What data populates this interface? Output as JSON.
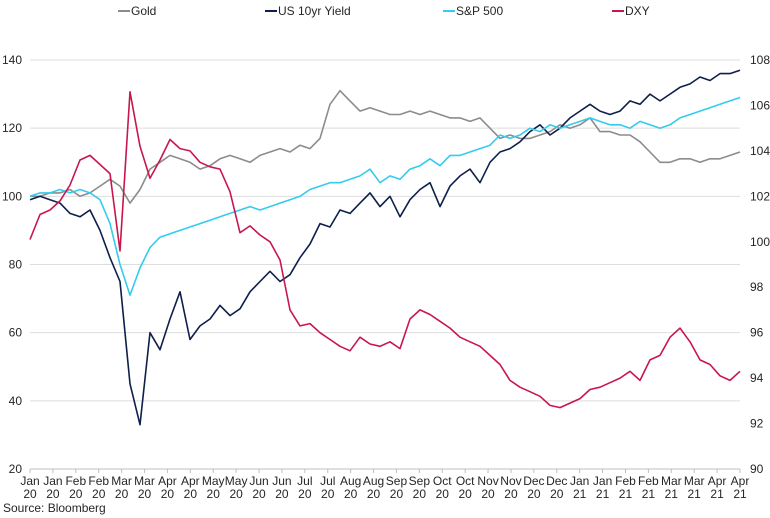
{
  "chart_data": {
    "type": "line",
    "title": "",
    "xlabel": "",
    "ylabel": "",
    "legend_position": "top",
    "grid": "horizontal",
    "y_left": {
      "ylim": [
        20,
        140
      ],
      "ticks": [
        20,
        40,
        60,
        80,
        100,
        120,
        140
      ]
    },
    "y_right": {
      "ylim": [
        90,
        108
      ],
      "ticks": [
        90,
        92,
        94,
        96,
        98,
        100,
        102,
        104,
        106,
        108
      ]
    },
    "x_ticks": [
      [
        "Jan",
        "20"
      ],
      [
        "Jan",
        "20"
      ],
      [
        "Feb",
        "20"
      ],
      [
        "Feb",
        "20"
      ],
      [
        "Mar",
        "20"
      ],
      [
        "Mar",
        "20"
      ],
      [
        "Apr",
        "20"
      ],
      [
        "Apr",
        "20"
      ],
      [
        "May",
        "20"
      ],
      [
        "May",
        "20"
      ],
      [
        "Jun",
        "20"
      ],
      [
        "Jun",
        "20"
      ],
      [
        "Jul",
        "20"
      ],
      [
        "Jul",
        "20"
      ],
      [
        "Aug",
        "20"
      ],
      [
        "Aug",
        "20"
      ],
      [
        "Sep",
        "20"
      ],
      [
        "Sep",
        "20"
      ],
      [
        "Oct",
        "20"
      ],
      [
        "Oct",
        "20"
      ],
      [
        "Nov",
        "20"
      ],
      [
        "Nov",
        "20"
      ],
      [
        "Dec",
        "20"
      ],
      [
        "Dec",
        "20"
      ],
      [
        "Jan",
        "21"
      ],
      [
        "Jan",
        "21"
      ],
      [
        "Feb",
        "21"
      ],
      [
        "Feb",
        "21"
      ],
      [
        "Mar",
        "21"
      ],
      [
        "Mar",
        "21"
      ],
      [
        "Apr",
        "21"
      ],
      [
        "Apr",
        "21"
      ]
    ],
    "series": [
      {
        "name": "Gold",
        "color": "#8c8c8c",
        "axis": "left",
        "values": [
          100,
          100,
          101,
          101,
          102,
          100,
          101,
          103,
          105,
          103,
          98,
          102,
          108,
          110,
          112,
          111,
          110,
          108,
          109,
          111,
          112,
          111,
          110,
          112,
          113,
          114,
          113,
          115,
          114,
          117,
          127,
          131,
          128,
          125,
          126,
          125,
          124,
          124,
          125,
          124,
          125,
          124,
          123,
          123,
          122,
          123,
          120,
          117,
          118,
          117,
          117,
          118,
          119,
          121,
          120,
          121,
          123,
          119,
          119,
          118,
          118,
          116,
          113,
          110,
          110,
          111,
          111,
          110,
          111,
          111,
          112,
          113
        ]
      },
      {
        "name": "US 10yr Yield",
        "color": "#0d1f4a",
        "axis": "left",
        "values": [
          99,
          100,
          99,
          98,
          95,
          94,
          96,
          90,
          82,
          75,
          45,
          33,
          60,
          55,
          64,
          72,
          58,
          62,
          64,
          68,
          65,
          67,
          72,
          75,
          78,
          75,
          77,
          82,
          86,
          92,
          91,
          96,
          95,
          98,
          101,
          97,
          100,
          94,
          99,
          102,
          104,
          97,
          103,
          106,
          108,
          104,
          110,
          113,
          114,
          116,
          119,
          121,
          118,
          120,
          123,
          125,
          127,
          125,
          124,
          125,
          128,
          127,
          130,
          128,
          130,
          132,
          133,
          135,
          134,
          136,
          136,
          137
        ]
      },
      {
        "name": "S&P 500",
        "color": "#33ccee",
        "axis": "left",
        "values": [
          100,
          101,
          101,
          102,
          101,
          102,
          101,
          99,
          92,
          80,
          71,
          79,
          85,
          88,
          89,
          90,
          91,
          92,
          93,
          94,
          95,
          96,
          97,
          96,
          97,
          98,
          99,
          100,
          102,
          103,
          104,
          104,
          105,
          106,
          108,
          104,
          106,
          105,
          108,
          109,
          111,
          109,
          112,
          112,
          113,
          114,
          115,
          118,
          117,
          118,
          120,
          119,
          121,
          120,
          121,
          122,
          123,
          122,
          121,
          121,
          120,
          122,
          121,
          120,
          121,
          123,
          124,
          125,
          126,
          127,
          128,
          129
        ]
      },
      {
        "name": "DXY",
        "color": "#c8174d",
        "axis": "right",
        "values": [
          100.1,
          101.2,
          101.4,
          101.8,
          102.5,
          103.6,
          103.8,
          103.4,
          103.0,
          99.6,
          106.6,
          104.2,
          102.8,
          103.6,
          104.5,
          104.1,
          104.0,
          103.5,
          103.3,
          103.2,
          102.2,
          100.4,
          100.7,
          100.3,
          100.0,
          99.2,
          97.0,
          96.3,
          96.4,
          96.0,
          95.7,
          95.4,
          95.2,
          95.8,
          95.5,
          95.4,
          95.6,
          95.3,
          96.6,
          97.0,
          96.8,
          96.5,
          96.2,
          95.8,
          95.6,
          95.4,
          95.0,
          94.6,
          93.9,
          93.6,
          93.4,
          93.2,
          92.8,
          92.7,
          92.9,
          93.1,
          93.5,
          93.6,
          93.8,
          94.0,
          94.3,
          93.9,
          94.8,
          95.0,
          95.8,
          96.2,
          95.6,
          94.8,
          94.6,
          94.1,
          93.9,
          94.3
        ]
      }
    ]
  },
  "legend": [
    {
      "label": "Gold",
      "color": "#8c8c8c"
    },
    {
      "label": "US 10yr Yield",
      "color": "#0d1f4a"
    },
    {
      "label": "S&P 500",
      "color": "#33ccee"
    },
    {
      "label": "DXY",
      "color": "#c8174d"
    }
  ],
  "source": "Source: Bloomberg"
}
